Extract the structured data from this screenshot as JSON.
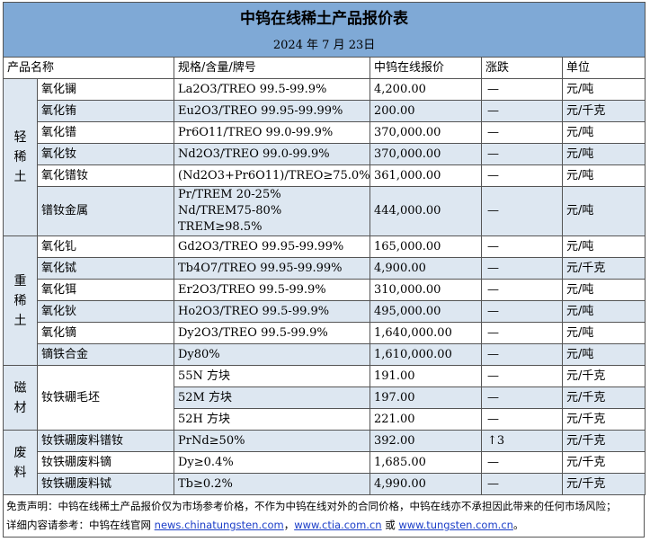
{
  "title": "中钨在线稀土产品报价表",
  "date": "2024 年 7 月 23日",
  "headers": {
    "name": "产品名称",
    "spec": "规格/含量/牌号",
    "price": "中钨在线报价",
    "change": "涨跌",
    "unit": "单位"
  },
  "groups": {
    "light": "轻稀土",
    "heavy": "重稀土",
    "magnetic": "磁材",
    "scrap": "废料"
  },
  "rows": [
    {
      "name": "氧化镧",
      "spec": "La2O3/TREO 99.5-99.9%",
      "price": "4,200.00",
      "change": "—",
      "unit": "元/吨"
    },
    {
      "name": "氧化铕",
      "spec": "Eu2O3/TREO 99.95-99.99%",
      "price": "200.00",
      "change": "—",
      "unit": "元/千克"
    },
    {
      "name": "氧化镨",
      "spec": "Pr6O11/TREO 99.0-99.9%",
      "price": "370,000.00",
      "change": "—",
      "unit": "元/吨"
    },
    {
      "name": "氧化钕",
      "spec": "Nd2O3/TREO 99.0-99.9%",
      "price": "370,000.00",
      "change": "—",
      "unit": "元/吨"
    },
    {
      "name": "氧化镨钕",
      "spec": "(Nd2O3+Pr6O11)/TREO≥75.0%",
      "price": "361,000.00",
      "change": "—",
      "unit": "元/吨"
    },
    {
      "name": "镨钕金属",
      "spec": "Pr/TREM 20-25%",
      "spec2": "Nd/TREM75-80% TREM≥98.5%",
      "price": "444,000.00",
      "change": "—",
      "unit": "元/吨"
    },
    {
      "name": "氧化钆",
      "spec": "Gd2O3/TREO 99.95-99.99%",
      "price": "165,000.00",
      "change": "—",
      "unit": "元/吨"
    },
    {
      "name": "氧化铽",
      "spec": "Tb4O7/TREO 99.95-99.99%",
      "price": "4,900.00",
      "change": "—",
      "unit": "元/千克"
    },
    {
      "name": "氧化铒",
      "spec": "Er2O3/TREO 99.5-99.9%",
      "price": "310,000.00",
      "change": "—",
      "unit": "元/吨"
    },
    {
      "name": "氧化钬",
      "spec": "Ho2O3/TREO 99.5-99.9%",
      "price": "495,000.00",
      "change": "—",
      "unit": "元/吨"
    },
    {
      "name": "氧化镝",
      "spec": "Dy2O3/TREO 99.5-99.9%",
      "price": "1,640,000.00",
      "change": "—",
      "unit": "元/吨"
    },
    {
      "name": "镝铁合金",
      "spec": "Dy80%",
      "price": "1,610,000.00",
      "change": "—",
      "unit": "元/吨"
    },
    {
      "name": "钕铁硼毛坯",
      "spec": "55N 方块",
      "price": "191.00",
      "change": "—",
      "unit": "元/千克"
    },
    {
      "spec": "52M 方块",
      "price": "197.00",
      "change": "—",
      "unit": "元/千克"
    },
    {
      "spec": "52H 方块",
      "price": "221.00",
      "change": "—",
      "unit": "元/千克"
    },
    {
      "name": "钕铁硼废料镨钕",
      "spec": "PrNd≥50%",
      "price": "392.00",
      "change": "↑3",
      "unit": "元/千克"
    },
    {
      "name": "钕铁硼废料镝",
      "spec": "Dy≥0.4%",
      "price": "1,685.00",
      "change": "—",
      "unit": "元/千克"
    },
    {
      "name": "钕铁硼废料铽",
      "spec": "Tb≥0.2%",
      "price": "4,990.00",
      "change": "—",
      "unit": "元/千克"
    }
  ],
  "disclaimer": {
    "line1": "免责声明：中钨在线稀土产品报价仅为市场参考价格，不作为中钨在线对外的合同价格，中钨在线亦不承担因此带来的任何市场风险；",
    "line2_prefix": "详细内容请参考：中钨在线官网 ",
    "link1": "news.chinatungsten.com",
    "sep1": "，",
    "link2": "www.ctia.com.cn",
    "sep2": " 或 ",
    "link3": "www.tungsten.com.cn",
    "suffix": "。"
  }
}
